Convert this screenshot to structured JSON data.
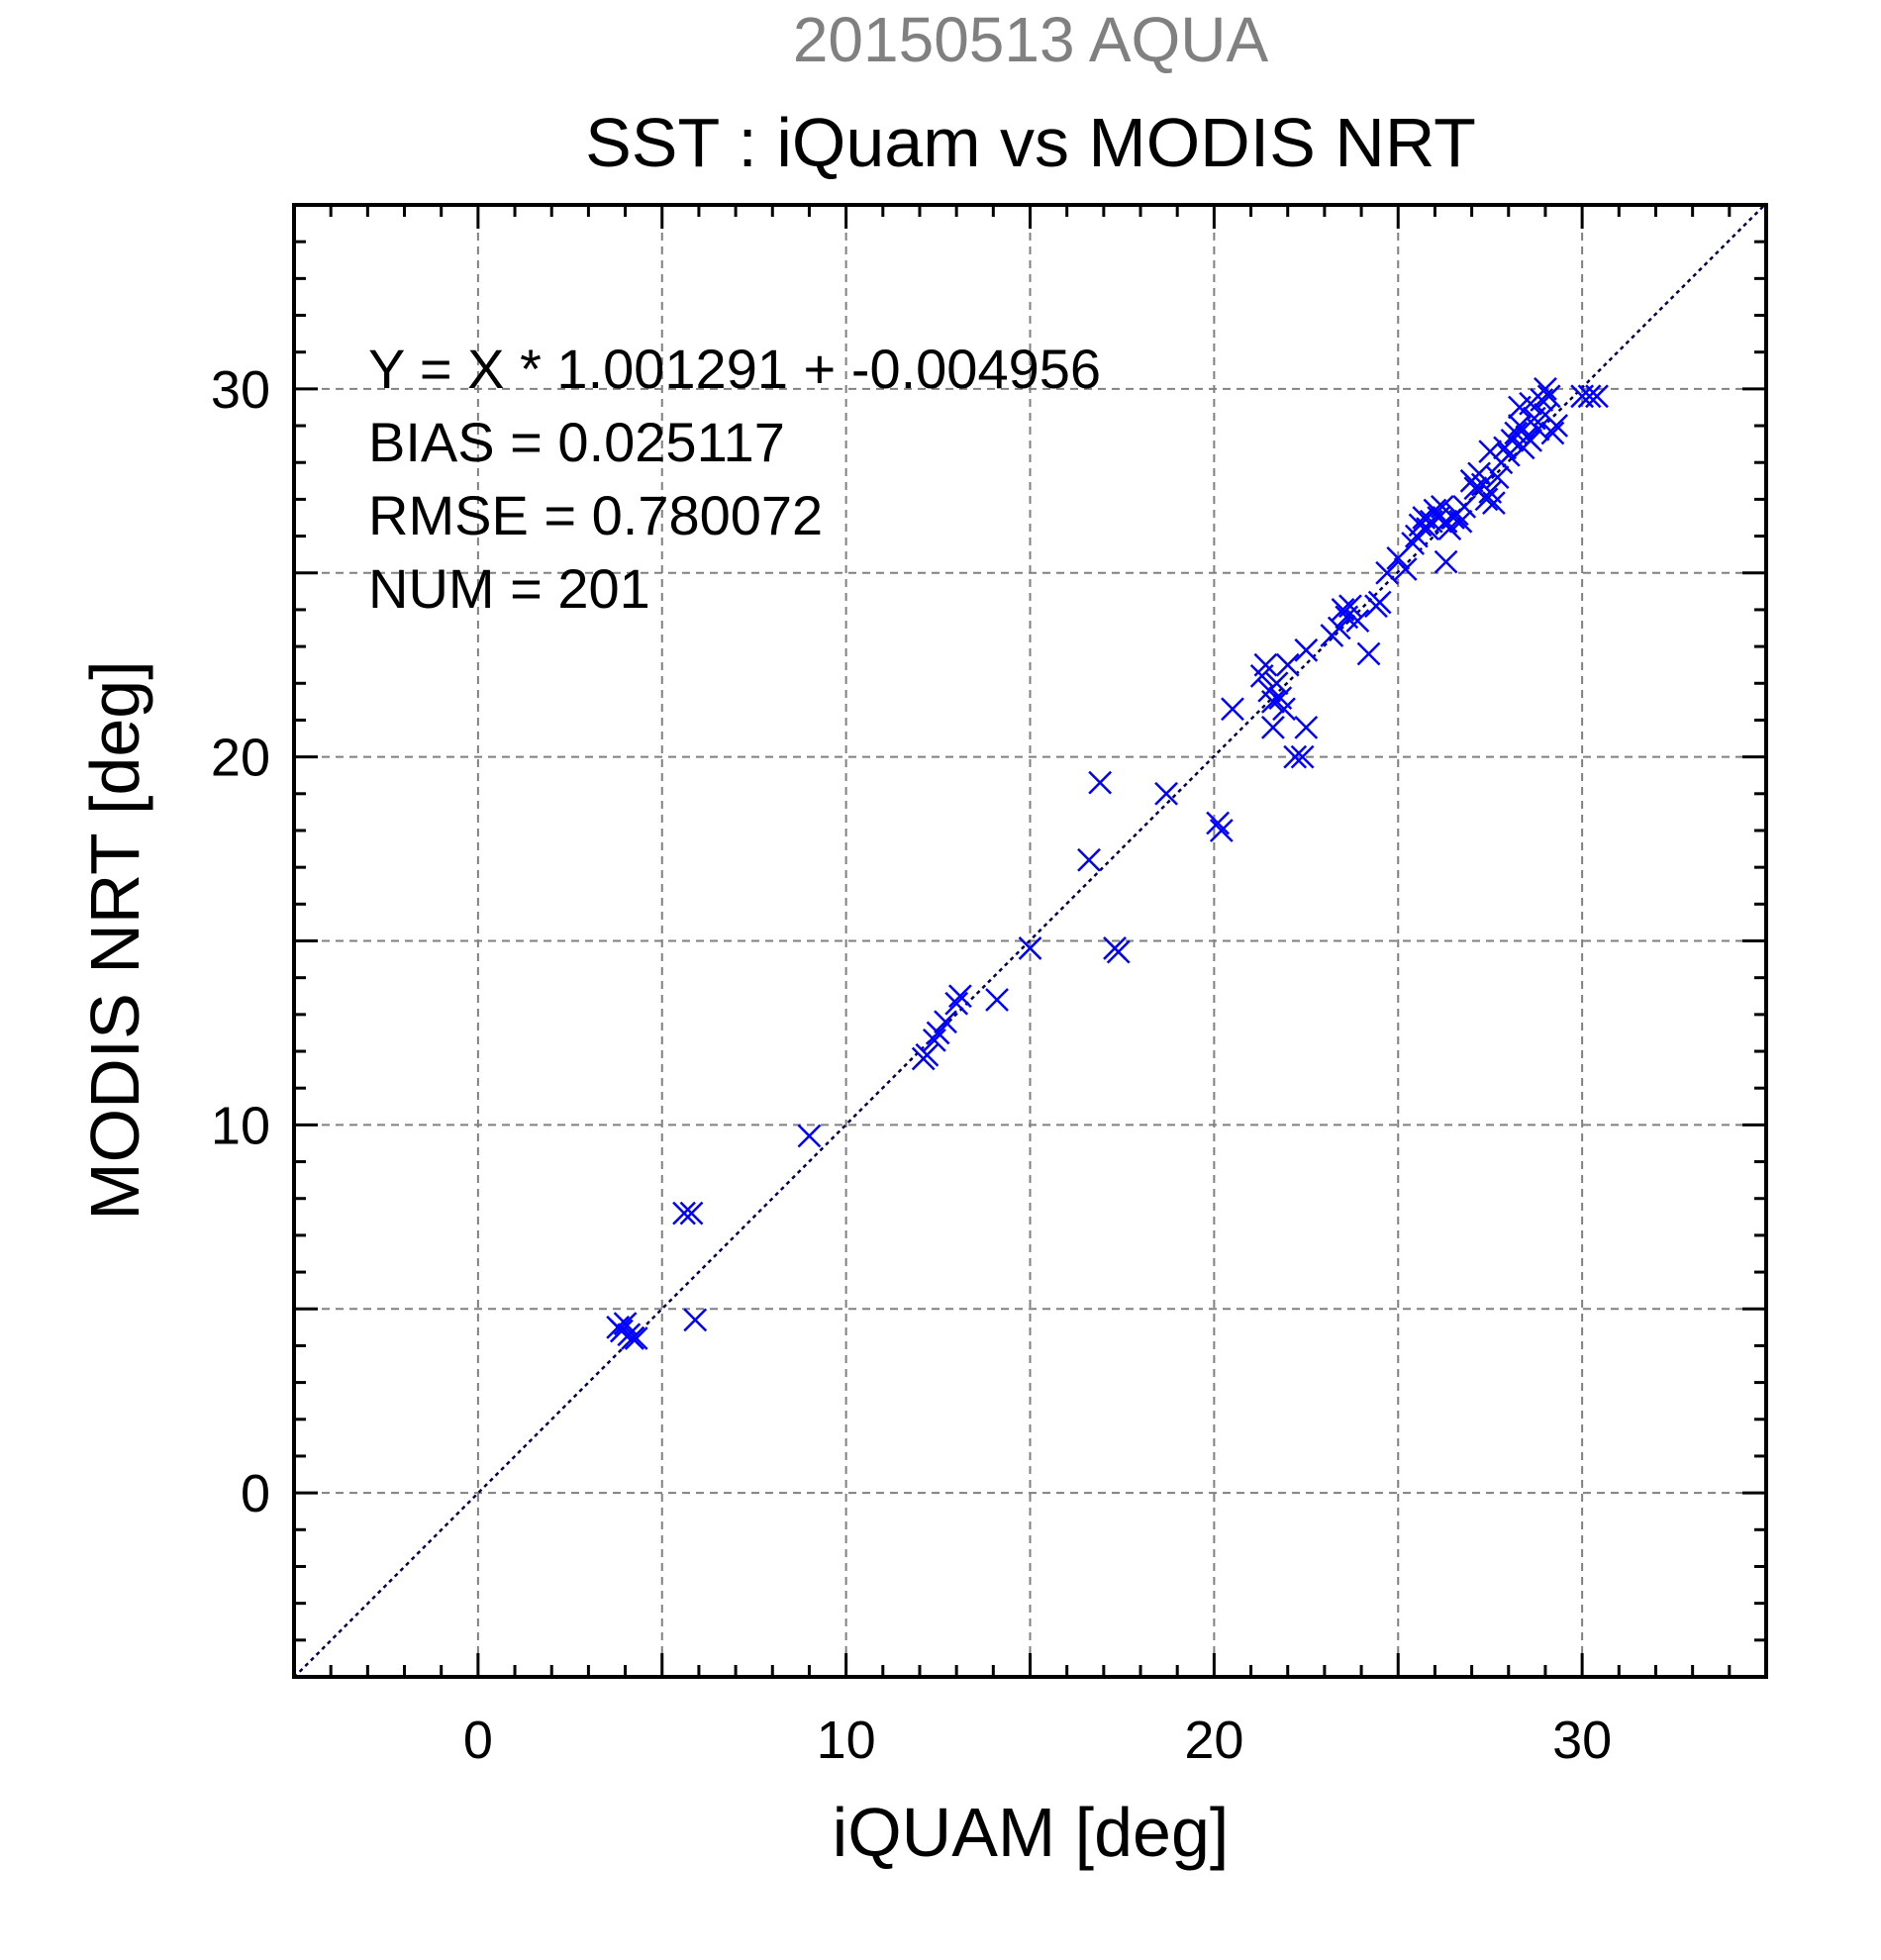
{
  "header": {
    "line1": "20150513 AQUA",
    "line2": "SST : iQuam vs MODIS NRT"
  },
  "stats": {
    "regression": "Y = X * 1.001291 + -0.004956",
    "bias": "BIAS = 0.025117",
    "rmse": "RMSE = 0.780072",
    "num": "NUM = 201"
  },
  "colors": {
    "marker": "#0000ff",
    "fit_line": "#00004a",
    "grid": "#808080",
    "title_top": "#808080",
    "text": "#000000"
  },
  "chart_data": {
    "type": "scatter",
    "title": "20150513 AQUA",
    "subtitle": "SST : iQuam vs MODIS NRT",
    "xlabel": "iQUAM [deg]",
    "ylabel": "MODIS NRT [deg]",
    "xlim": [
      -5,
      35
    ],
    "ylim": [
      -5,
      35
    ],
    "xticks": [
      0,
      10,
      20,
      30
    ],
    "yticks": [
      0,
      10,
      20,
      30
    ],
    "grid": true,
    "marker": "x",
    "fit_line": {
      "slope": 1.001291,
      "intercept": -0.004956,
      "style": "dotted"
    },
    "series": [
      {
        "points": [
          [
            3.8,
            4.5
          ],
          [
            3.9,
            4.4
          ],
          [
            4.0,
            4.6
          ],
          [
            4.1,
            4.3
          ],
          [
            4.2,
            4.2
          ],
          [
            4.3,
            4.2
          ],
          [
            5.6,
            7.6
          ],
          [
            5.8,
            7.6
          ],
          [
            5.9,
            4.7
          ],
          [
            9.0,
            9.7
          ],
          [
            12.1,
            11.8
          ],
          [
            12.2,
            11.9
          ],
          [
            12.4,
            12.3
          ],
          [
            12.5,
            12.5
          ],
          [
            12.7,
            12.8
          ],
          [
            13.0,
            13.3
          ],
          [
            13.1,
            13.5
          ],
          [
            14.1,
            13.4
          ],
          [
            15.0,
            14.8
          ],
          [
            16.6,
            17.2
          ],
          [
            16.9,
            19.3
          ],
          [
            17.3,
            14.8
          ],
          [
            17.4,
            14.7
          ],
          [
            18.7,
            19.0
          ],
          [
            20.1,
            18.2
          ],
          [
            20.2,
            18.0
          ],
          [
            20.5,
            21.3
          ],
          [
            21.3,
            22.2
          ],
          [
            21.4,
            22.5
          ],
          [
            21.5,
            21.8
          ],
          [
            21.6,
            21.5
          ],
          [
            21.7,
            22.0
          ],
          [
            21.8,
            21.6
          ],
          [
            21.9,
            21.3
          ],
          [
            21.6,
            20.8
          ],
          [
            22.0,
            22.5
          ],
          [
            22.2,
            20.0
          ],
          [
            22.4,
            20.0
          ],
          [
            22.5,
            20.8
          ],
          [
            22.5,
            22.9
          ],
          [
            23.2,
            23.3
          ],
          [
            23.4,
            23.5
          ],
          [
            23.5,
            24.0
          ],
          [
            23.6,
            23.8
          ],
          [
            23.7,
            24.1
          ],
          [
            23.9,
            23.7
          ],
          [
            24.2,
            22.8
          ],
          [
            24.4,
            24.1
          ],
          [
            24.5,
            24.2
          ],
          [
            24.7,
            25.0
          ],
          [
            25.0,
            25.4
          ],
          [
            25.2,
            25.1
          ],
          [
            25.4,
            25.8
          ],
          [
            25.5,
            26.0
          ],
          [
            25.6,
            26.3
          ],
          [
            25.7,
            26.5
          ],
          [
            25.8,
            26.2
          ],
          [
            25.9,
            26.4
          ],
          [
            26.0,
            26.7
          ],
          [
            26.1,
            26.5
          ],
          [
            26.2,
            26.8
          ],
          [
            26.3,
            25.3
          ],
          [
            26.3,
            26.4
          ],
          [
            26.4,
            26.2
          ],
          [
            26.5,
            26.5
          ],
          [
            26.6,
            26.6
          ],
          [
            26.7,
            26.4
          ],
          [
            26.8,
            26.8
          ],
          [
            27.0,
            27.5
          ],
          [
            27.1,
            27.3
          ],
          [
            27.2,
            27.7
          ],
          [
            27.3,
            27.4
          ],
          [
            27.4,
            27.0
          ],
          [
            27.5,
            27.2
          ],
          [
            27.6,
            26.9
          ],
          [
            27.5,
            28.3
          ],
          [
            27.7,
            27.6
          ],
          [
            27.8,
            28.0
          ],
          [
            27.9,
            28.4
          ],
          [
            28.0,
            28.2
          ],
          [
            28.1,
            28.6
          ],
          [
            28.2,
            28.8
          ],
          [
            28.3,
            29.0
          ],
          [
            28.4,
            28.4
          ],
          [
            28.5,
            28.7
          ],
          [
            28.3,
            29.5
          ],
          [
            28.6,
            29.6
          ],
          [
            28.7,
            29.2
          ],
          [
            28.8,
            28.9
          ],
          [
            28.9,
            29.7
          ],
          [
            29.0,
            30.0
          ],
          [
            29.0,
            29.3
          ],
          [
            29.1,
            29.8
          ],
          [
            29.2,
            28.8
          ],
          [
            28.6,
            28.6
          ],
          [
            29.3,
            29.0
          ],
          [
            30.0,
            29.8
          ],
          [
            30.2,
            29.8
          ],
          [
            30.4,
            29.8
          ]
        ]
      }
    ]
  }
}
